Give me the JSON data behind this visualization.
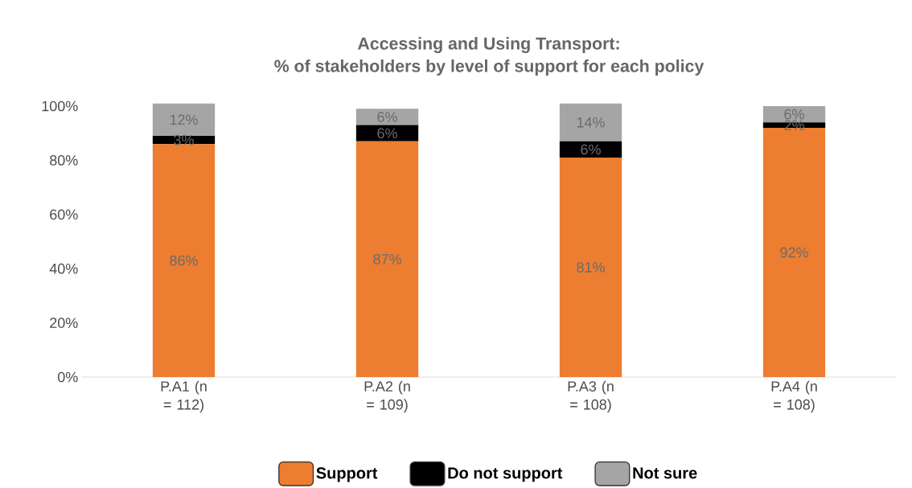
{
  "chart_data": {
    "type": "bar",
    "title": "Accessing and Using Transport:",
    "subtitle": "% of stakeholders by level of support for each policy",
    "categories": [
      "P.A1 (n = 112)",
      "P.A2 (n = 109)",
      "P.A3 (n = 108)",
      "P.A4 (n = 108)"
    ],
    "stacked": true,
    "series": [
      {
        "name": "Support",
        "color": "#ed7d31",
        "values": [
          86,
          87,
          81,
          92
        ],
        "value_labels": [
          "86%",
          "87%",
          "81%",
          "92%"
        ]
      },
      {
        "name": "Do not support",
        "color": "#000000",
        "values": [
          3,
          6,
          6,
          2
        ],
        "value_labels": [
          "3%",
          "6%",
          "6%",
          "2%"
        ]
      },
      {
        "name": "Not sure",
        "color": "#a5a5a5",
        "values": [
          12,
          6,
          14,
          6
        ],
        "value_labels": [
          "12%",
          "6%",
          "14%",
          "6%"
        ]
      }
    ],
    "ylim": [
      0,
      102
    ],
    "yticks": [
      {
        "value": 0,
        "label": "0%"
      },
      {
        "value": 20,
        "label": "20%"
      },
      {
        "value": 40,
        "label": "40%"
      },
      {
        "value": 60,
        "label": "60%"
      },
      {
        "value": 80,
        "label": "80%"
      },
      {
        "value": 100,
        "label": "100%"
      }
    ],
    "legend": "bottom"
  }
}
